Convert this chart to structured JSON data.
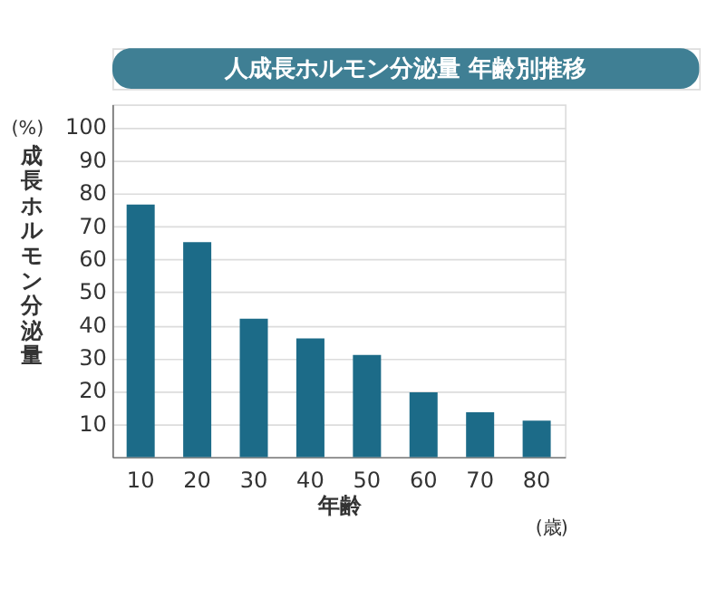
{
  "chart_data": {
    "type": "bar",
    "title": "人成長ホルモン分泌量 年齢別推移",
    "xlabel": "年齢",
    "ylabel": "成長ホルモン分泌量",
    "categories": [
      "10",
      "20",
      "30",
      "40",
      "50",
      "60",
      "70",
      "80"
    ],
    "values": [
      76.6,
      65.2,
      42,
      36,
      31,
      19.6,
      13.6,
      11
    ],
    "color": "#1c6b88",
    "ylim": [
      0,
      107
    ],
    "yticks": [
      10,
      20,
      30,
      40,
      50,
      60,
      70,
      80,
      90,
      100
    ],
    "grid": "y",
    "annotations": [
      "(%)",
      "(歳)"
    ]
  }
}
